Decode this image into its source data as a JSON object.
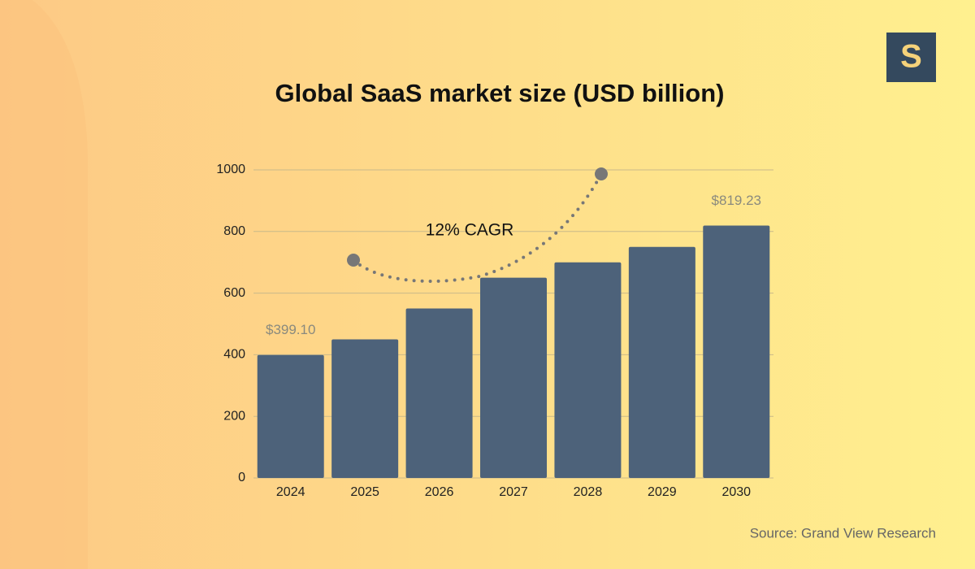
{
  "logo": "S",
  "source": "Source: Grand View Research",
  "chart_data": {
    "type": "bar",
    "title": "Global SaaS market size (USD billion)",
    "annotation": "12% CAGR",
    "categories": [
      "2024",
      "2025",
      "2026",
      "2027",
      "2028",
      "2029",
      "2030"
    ],
    "values": [
      399.1,
      450,
      550,
      650,
      700,
      750,
      819.23
    ],
    "value_labels": [
      "$399.10",
      null,
      null,
      null,
      null,
      null,
      "$819.23"
    ],
    "color": "#4d627a",
    "ylim": [
      0,
      1000
    ],
    "yticks": [
      0,
      200,
      400,
      600,
      800,
      1000
    ],
    "grid": true
  }
}
